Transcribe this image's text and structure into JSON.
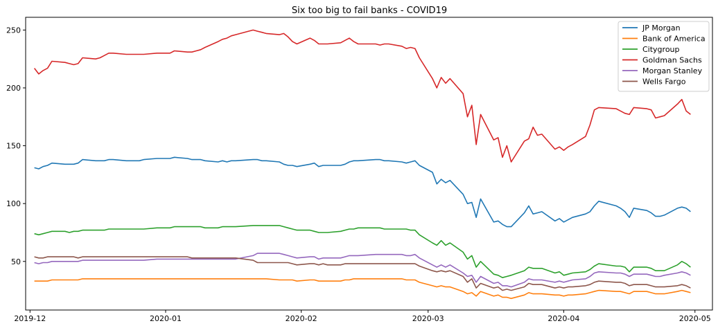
{
  "chart_data": {
    "type": "line",
    "title": "Six too big to fail banks - COVID19",
    "xlabel": "",
    "ylabel": "",
    "x_range": [
      "2019-11-30",
      "2020-05-05"
    ],
    "ylim": [
      8,
      261
    ],
    "grid": false,
    "legend_position": "top-right",
    "x_ticks": [
      {
        "date": "2019-12-01",
        "label": "2019-12"
      },
      {
        "date": "2020-01-01",
        "label": "2020-01"
      },
      {
        "date": "2020-02-01",
        "label": "2020-02"
      },
      {
        "date": "2020-03-01",
        "label": "2020-03"
      },
      {
        "date": "2020-04-01",
        "label": "2020-04"
      },
      {
        "date": "2020-05-01",
        "label": "2020-05"
      }
    ],
    "y_ticks": [
      50,
      100,
      150,
      200,
      250
    ],
    "x": [
      "2019-12-02",
      "2019-12-03",
      "2019-12-04",
      "2019-12-05",
      "2019-12-06",
      "2019-12-09",
      "2019-12-10",
      "2019-12-11",
      "2019-12-12",
      "2019-12-13",
      "2019-12-16",
      "2019-12-17",
      "2019-12-18",
      "2019-12-19",
      "2019-12-20",
      "2019-12-23",
      "2019-12-24",
      "2019-12-26",
      "2019-12-27",
      "2019-12-30",
      "2019-12-31",
      "2020-01-02",
      "2020-01-03",
      "2020-01-06",
      "2020-01-07",
      "2020-01-08",
      "2020-01-09",
      "2020-01-10",
      "2020-01-13",
      "2020-01-14",
      "2020-01-15",
      "2020-01-16",
      "2020-01-17",
      "2020-01-21",
      "2020-01-22",
      "2020-01-23",
      "2020-01-24",
      "2020-01-27",
      "2020-01-28",
      "2020-01-29",
      "2020-01-30",
      "2020-01-31",
      "2020-02-03",
      "2020-02-04",
      "2020-02-05",
      "2020-02-06",
      "2020-02-07",
      "2020-02-10",
      "2020-02-11",
      "2020-02-12",
      "2020-02-13",
      "2020-02-14",
      "2020-02-18",
      "2020-02-19",
      "2020-02-20",
      "2020-02-21",
      "2020-02-24",
      "2020-02-25",
      "2020-02-26",
      "2020-02-27",
      "2020-02-28",
      "2020-03-02",
      "2020-03-03",
      "2020-03-04",
      "2020-03-05",
      "2020-03-06",
      "2020-03-09",
      "2020-03-10",
      "2020-03-11",
      "2020-03-12",
      "2020-03-13",
      "2020-03-16",
      "2020-03-17",
      "2020-03-18",
      "2020-03-19",
      "2020-03-20",
      "2020-03-23",
      "2020-03-24",
      "2020-03-25",
      "2020-03-26",
      "2020-03-27",
      "2020-03-30",
      "2020-03-31",
      "2020-04-01",
      "2020-04-02",
      "2020-04-03",
      "2020-04-06",
      "2020-04-07",
      "2020-04-08",
      "2020-04-09",
      "2020-04-13",
      "2020-04-14",
      "2020-04-15",
      "2020-04-16",
      "2020-04-17",
      "2020-04-20",
      "2020-04-21",
      "2020-04-22",
      "2020-04-23",
      "2020-04-24",
      "2020-04-27",
      "2020-04-28",
      "2020-04-29",
      "2020-04-30"
    ],
    "series": [
      {
        "name": "JP Morgan",
        "color": "#1f77b4",
        "values": [
          131,
          130,
          132,
          133,
          135,
          134,
          134,
          134,
          135,
          138,
          137,
          137,
          137,
          138,
          138,
          137,
          137,
          137,
          138,
          139,
          139,
          139,
          140,
          139,
          138,
          138,
          138,
          137,
          136,
          137,
          136,
          137,
          137,
          138,
          138,
          137,
          137,
          136,
          134,
          133,
          133,
          132,
          134,
          135,
          132,
          133,
          133,
          133,
          134,
          136,
          137,
          137,
          138,
          138,
          137,
          137,
          136,
          135,
          136,
          137,
          133,
          127,
          117,
          121,
          118,
          120,
          108,
          100,
          101,
          88,
          104,
          84,
          85,
          82,
          80,
          80,
          92,
          98,
          91,
          92,
          93,
          85,
          87,
          84,
          86,
          88,
          91,
          93,
          98,
          102,
          98,
          96,
          93,
          88,
          96,
          94,
          92,
          89,
          89,
          90,
          96,
          97,
          96,
          93
        ]
      },
      {
        "name": "Bank of America",
        "color": "#ff7f0e",
        "values": [
          33,
          33,
          33,
          33,
          34,
          34,
          34,
          34,
          34,
          35,
          35,
          35,
          35,
          35,
          35,
          35,
          35,
          35,
          35,
          35,
          35,
          35,
          35,
          35,
          35,
          35,
          35,
          35,
          35,
          35,
          35,
          35,
          35,
          35,
          35,
          35,
          35,
          34,
          34,
          34,
          34,
          33,
          34,
          34,
          33,
          33,
          33,
          33,
          34,
          34,
          35,
          35,
          35,
          35,
          35,
          35,
          35,
          34,
          34,
          34,
          32,
          29,
          28,
          29,
          28,
          28,
          24,
          22,
          23,
          20,
          24,
          20,
          21,
          19,
          19,
          18,
          21,
          23,
          22,
          22,
          22,
          21,
          21,
          20,
          21,
          21,
          22,
          23,
          24,
          25,
          24,
          24,
          23,
          22,
          24,
          24,
          23,
          22,
          22,
          22,
          24,
          25,
          24,
          23
        ]
      },
      {
        "name": "Citygroup",
        "color": "#2ca02c",
        "values": [
          74,
          73,
          74,
          75,
          76,
          76,
          75,
          76,
          76,
          77,
          77,
          77,
          77,
          78,
          78,
          78,
          78,
          78,
          78,
          79,
          79,
          79,
          80,
          80,
          80,
          80,
          80,
          79,
          79,
          80,
          80,
          80,
          80,
          81,
          81,
          81,
          81,
          81,
          80,
          79,
          78,
          77,
          77,
          76,
          75,
          75,
          75,
          76,
          77,
          78,
          78,
          79,
          79,
          79,
          78,
          78,
          78,
          78,
          77,
          77,
          73,
          66,
          64,
          68,
          64,
          66,
          58,
          52,
          55,
          45,
          50,
          39,
          38,
          36,
          37,
          38,
          42,
          45,
          44,
          44,
          44,
          40,
          41,
          38,
          39,
          40,
          41,
          43,
          46,
          48,
          46,
          46,
          45,
          41,
          45,
          45,
          44,
          42,
          42,
          42,
          47,
          50,
          48,
          45
        ]
      },
      {
        "name": "Goldman Sachs",
        "color": "#d62728",
        "values": [
          217,
          212,
          215,
          217,
          223,
          222,
          221,
          220,
          221,
          226,
          225,
          226,
          228,
          230,
          230,
          229,
          229,
          229,
          229,
          230,
          230,
          230,
          232,
          231,
          231,
          232,
          233,
          235,
          240,
          242,
          243,
          245,
          246,
          250,
          249,
          248,
          247,
          246,
          247,
          244,
          240,
          238,
          243,
          241,
          238,
          238,
          238,
          239,
          241,
          243,
          240,
          238,
          238,
          237,
          238,
          238,
          236,
          234,
          235,
          234,
          226,
          208,
          200,
          209,
          204,
          208,
          195,
          175,
          185,
          151,
          177,
          155,
          157,
          140,
          150,
          136,
          154,
          156,
          166,
          159,
          160,
          147,
          149,
          146,
          149,
          151,
          158,
          168,
          181,
          183,
          182,
          180,
          178,
          177,
          183,
          182,
          181,
          174,
          175,
          176,
          186,
          190,
          180,
          177
        ]
      },
      {
        "name": "Morgan Stanley",
        "color": "#9467bd",
        "values": [
          49,
          48,
          49,
          49,
          50,
          50,
          50,
          50,
          50,
          51,
          51,
          51,
          51,
          51,
          51,
          51,
          51,
          51,
          51,
          52,
          52,
          52,
          52,
          52,
          52,
          52,
          52,
          52,
          52,
          52,
          52,
          52,
          52,
          55,
          57,
          57,
          57,
          57,
          56,
          55,
          54,
          53,
          54,
          54,
          52,
          53,
          53,
          53,
          54,
          55,
          55,
          55,
          56,
          56,
          56,
          56,
          56,
          55,
          55,
          56,
          53,
          47,
          45,
          47,
          45,
          47,
          40,
          37,
          38,
          32,
          37,
          31,
          32,
          29,
          29,
          28,
          32,
          35,
          34,
          34,
          34,
          32,
          33,
          32,
          33,
          34,
          35,
          37,
          40,
          41,
          40,
          40,
          39,
          37,
          39,
          39,
          38,
          37,
          37,
          38,
          40,
          41,
          40,
          38
        ]
      },
      {
        "name": "Wells Fargo",
        "color": "#8c564b",
        "values": [
          54,
          53,
          53,
          54,
          54,
          54,
          54,
          54,
          53,
          54,
          54,
          54,
          54,
          54,
          54,
          54,
          54,
          54,
          54,
          54,
          54,
          54,
          54,
          54,
          53,
          53,
          53,
          53,
          53,
          53,
          53,
          53,
          53,
          51,
          49,
          49,
          49,
          49,
          49,
          49,
          48,
          47,
          48,
          48,
          47,
          48,
          47,
          47,
          48,
          48,
          48,
          48,
          48,
          48,
          48,
          48,
          48,
          48,
          48,
          48,
          46,
          42,
          41,
          42,
          41,
          42,
          37,
          32,
          35,
          27,
          31,
          27,
          28,
          25,
          26,
          25,
          28,
          31,
          30,
          30,
          30,
          27,
          28,
          27,
          28,
          28,
          29,
          30,
          32,
          33,
          32,
          32,
          31,
          29,
          30,
          30,
          29,
          28,
          28,
          28,
          29,
          30,
          29,
          27
        ]
      }
    ]
  }
}
